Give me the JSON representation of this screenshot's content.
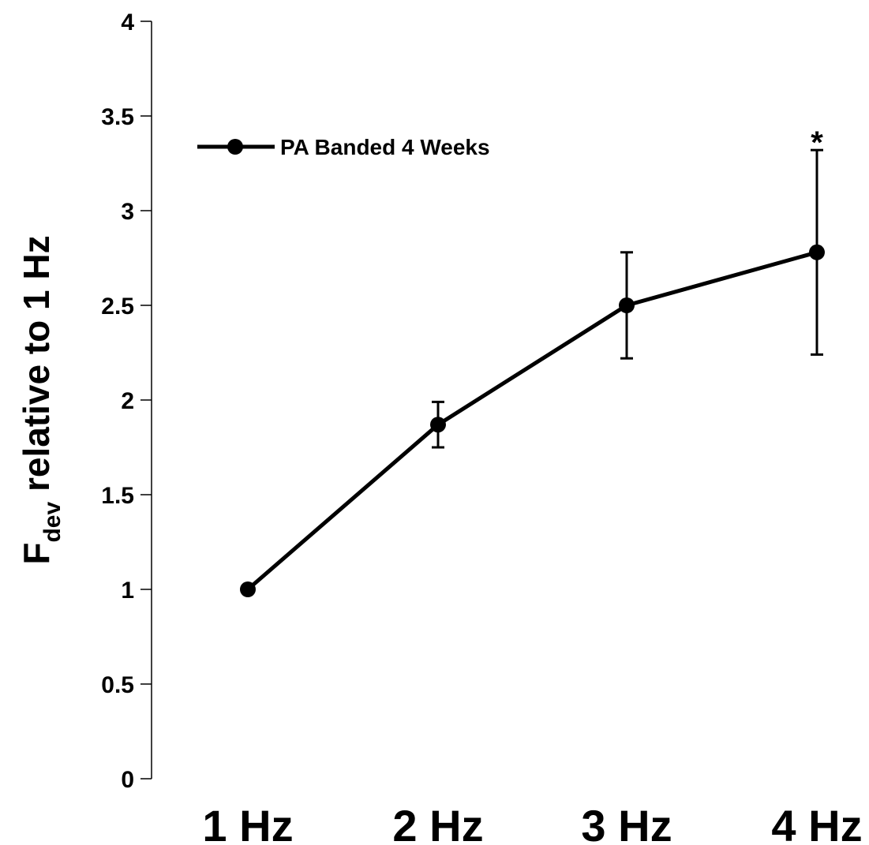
{
  "chart_data": {
    "type": "line",
    "title": "",
    "xlabel": "",
    "ylabel_main": "F",
    "ylabel_sub": "dev",
    "ylabel_rest": " relative to 1 Hz",
    "categories": [
      "1 Hz",
      "2 Hz",
      "3 Hz",
      "4 Hz"
    ],
    "ylim": [
      0,
      4
    ],
    "yticks": [
      "0",
      "0.5",
      "1",
      "1.5",
      "2",
      "2.5",
      "3",
      "3.5",
      "4"
    ],
    "legend_position": "top-left",
    "series": [
      {
        "name": "PA Banded 4 Weeks",
        "color": "#000000",
        "values": [
          1.0,
          1.87,
          2.5,
          2.78
        ],
        "error_high": [
          1.0,
          1.99,
          2.78,
          3.32
        ],
        "error_low": [
          1.0,
          1.75,
          2.22,
          2.24
        ]
      }
    ],
    "annotations": [
      {
        "category": "4 Hz",
        "text": "*",
        "y": 3.42
      }
    ]
  }
}
